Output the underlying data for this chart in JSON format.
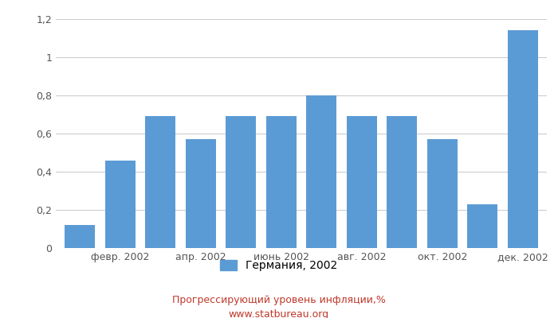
{
  "values": [
    0.12,
    0.46,
    0.69,
    0.57,
    0.69,
    0.69,
    0.8,
    0.69,
    0.69,
    0.57,
    0.23,
    1.14
  ],
  "xtick_labels": [
    "февр. 2002",
    "апр. 2002",
    "июнь 2002",
    "авг. 2002",
    "окт. 2002",
    "дек. 2002"
  ],
  "xtick_positions": [
    1,
    3,
    5,
    7,
    9,
    11
  ],
  "bar_color": "#5b9bd5",
  "ylim": [
    0,
    1.2
  ],
  "yticks": [
    0,
    0.2,
    0.4,
    0.6,
    0.8,
    1.0,
    1.2
  ],
  "ytick_labels": [
    "0",
    "0,2",
    "0,4",
    "0,6",
    "0,8",
    "1",
    "1,2"
  ],
  "legend_label": "Германия, 2002",
  "footer_line1": "Прогрессирующий уровень инфляции,%",
  "footer_line2": "www.statbureau.org",
  "footer_color": "#c0392b",
  "background_color": "#ffffff",
  "grid_color": "#cccccc",
  "bar_width": 0.75
}
